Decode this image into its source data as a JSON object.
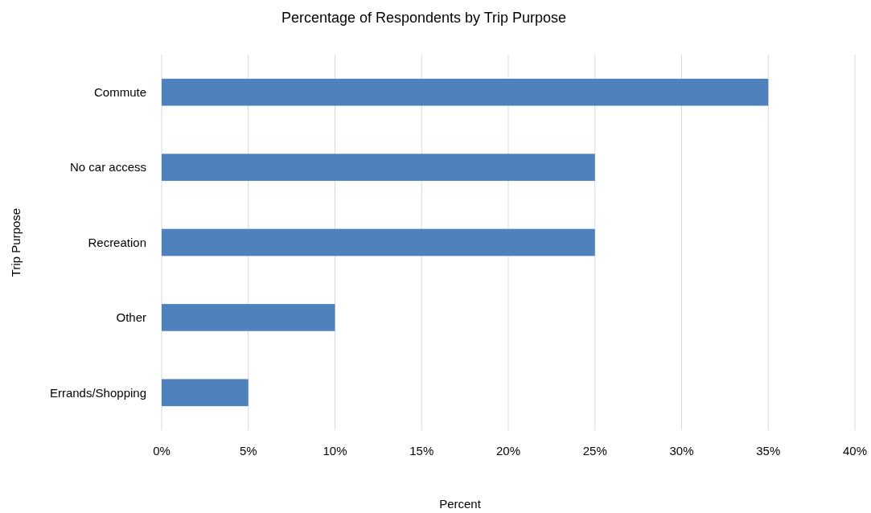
{
  "chart_data": {
    "type": "bar",
    "orientation": "horizontal",
    "title": "Percentage of Respondents by Trip Purpose",
    "xlabel": "Percent",
    "ylabel": "Trip Purpose",
    "categories": [
      "Commute",
      "No car access",
      "Recreation",
      "Other",
      "Errands/Shopping"
    ],
    "values": [
      35,
      25,
      25,
      10,
      5
    ],
    "color": "#4f81bd",
    "xlim": [
      0,
      40
    ],
    "xticks": [
      {
        "value": 0,
        "label": "0%"
      },
      {
        "value": 5,
        "label": "5%"
      },
      {
        "value": 10,
        "label": "10%"
      },
      {
        "value": 15,
        "label": "15%"
      },
      {
        "value": 20,
        "label": "20%"
      },
      {
        "value": 25,
        "label": "25%"
      },
      {
        "value": 30,
        "label": "30%"
      },
      {
        "value": 35,
        "label": "35%"
      },
      {
        "value": 40,
        "label": "40%"
      }
    ],
    "grid": "x"
  }
}
